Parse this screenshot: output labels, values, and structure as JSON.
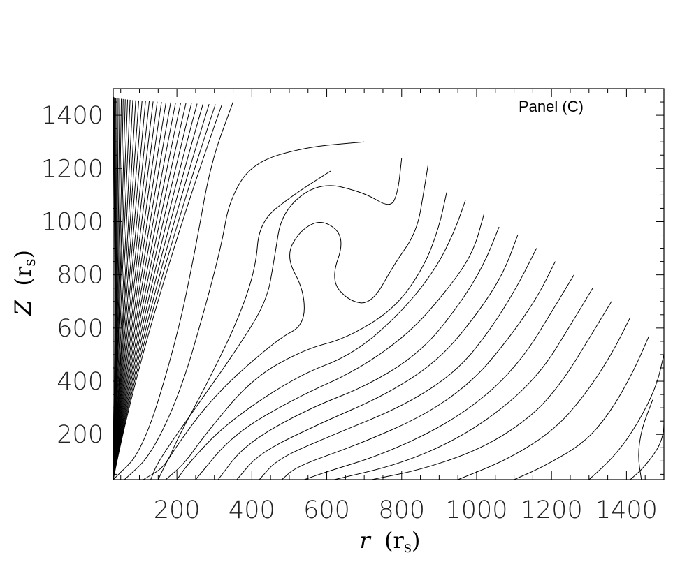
{
  "chart_data": {
    "type": "contour",
    "panel_label": "Panel (C)",
    "xlabel": "r (r_s)",
    "xlabel_main": "r",
    "xlabel_unit": "(r",
    "xlabel_unit_sub": "s",
    "xlabel_close": ")",
    "ylabel_main": "Z",
    "ylabel_unit": "(r",
    "ylabel_unit_sub": "s",
    "ylabel_close": ")",
    "xlim": [
      30,
      1500
    ],
    "ylim": [
      30,
      1500
    ],
    "x_ticks": [
      200,
      400,
      600,
      800,
      1000,
      1200,
      1400
    ],
    "y_ticks": [
      200,
      400,
      600,
      800,
      1000,
      1200,
      1400
    ],
    "x_tick_labels": [
      "200",
      "400",
      "600",
      "800",
      "1000",
      "1200",
      "1400"
    ],
    "y_tick_labels": [
      "200",
      "400",
      "600",
      "800",
      "1000",
      "1200",
      "1400"
    ],
    "grid": false,
    "contours": [
      {
        "points": [
          [
            350,
            1450
          ],
          [
            290,
            1220
          ],
          [
            250,
            900
          ],
          [
            200,
            560
          ],
          [
            110,
            140
          ],
          [
            30,
            30
          ]
        ]
      },
      {
        "points": [
          [
            700,
            1300
          ],
          [
            540,
            1280
          ],
          [
            400,
            1220
          ],
          [
            340,
            1080
          ],
          [
            320,
            920
          ],
          [
            280,
            700
          ],
          [
            210,
            360
          ],
          [
            130,
            120
          ],
          [
            60,
            30
          ]
        ]
      },
      {
        "points": [
          [
            610,
            1190
          ],
          [
            510,
            1100
          ],
          [
            420,
            1000
          ],
          [
            410,
            820
          ],
          [
            360,
            620
          ],
          [
            280,
            390
          ],
          [
            200,
            180
          ],
          [
            170,
            80
          ],
          [
            110,
            30
          ]
        ]
      },
      {
        "points": [
          [
            800,
            1240
          ],
          [
            790,
            1110
          ],
          [
            770,
            1050
          ],
          [
            700,
            1110
          ],
          [
            580,
            1150
          ],
          [
            480,
            1040
          ],
          [
            460,
            860
          ],
          [
            440,
            700
          ],
          [
            360,
            520
          ],
          [
            250,
            300
          ],
          [
            150,
            100
          ],
          [
            130,
            30
          ]
        ]
      },
      {
        "points": [
          [
            870,
            1210
          ],
          [
            860,
            1120
          ],
          [
            840,
            960
          ],
          [
            780,
            840
          ],
          [
            720,
            690
          ],
          [
            660,
            700
          ],
          [
            610,
            780
          ],
          [
            650,
            940
          ],
          [
            590,
            1010
          ],
          [
            530,
            970
          ],
          [
            490,
            870
          ],
          [
            540,
            740
          ],
          [
            540,
            610
          ],
          [
            470,
            560
          ],
          [
            300,
            350
          ],
          [
            180,
            120
          ],
          [
            150,
            30
          ]
        ]
      },
      {
        "points": [
          [
            920,
            1110
          ],
          [
            900,
            980
          ],
          [
            860,
            830
          ],
          [
            780,
            670
          ],
          [
            650,
            560
          ],
          [
            540,
            520
          ],
          [
            400,
            410
          ],
          [
            270,
            190
          ],
          [
            220,
            90
          ],
          [
            170,
            30
          ]
        ]
      },
      {
        "points": [
          [
            970,
            1080
          ],
          [
            940,
            960
          ],
          [
            890,
            820
          ],
          [
            800,
            660
          ],
          [
            670,
            500
          ],
          [
            520,
            420
          ],
          [
            330,
            240
          ],
          [
            230,
            90
          ],
          [
            200,
            30
          ]
        ]
      },
      {
        "points": [
          [
            1020,
            1030
          ],
          [
            990,
            880
          ],
          [
            920,
            740
          ],
          [
            820,
            580
          ],
          [
            680,
            440
          ],
          [
            520,
            340
          ],
          [
            350,
            200
          ],
          [
            250,
            30
          ]
        ]
      },
      {
        "points": [
          [
            1060,
            980
          ],
          [
            1020,
            840
          ],
          [
            960,
            700
          ],
          [
            860,
            520
          ],
          [
            720,
            390
          ],
          [
            540,
            290
          ],
          [
            380,
            160
          ],
          [
            310,
            30
          ]
        ]
      },
      {
        "points": [
          [
            1110,
            950
          ],
          [
            1070,
            800
          ],
          [
            1000,
            650
          ],
          [
            900,
            480
          ],
          [
            760,
            350
          ],
          [
            580,
            240
          ],
          [
            420,
            130
          ],
          [
            360,
            30
          ]
        ]
      },
      {
        "points": [
          [
            1160,
            900
          ],
          [
            1110,
            760
          ],
          [
            1040,
            600
          ],
          [
            950,
            440
          ],
          [
            810,
            310
          ],
          [
            620,
            200
          ],
          [
            470,
            110
          ],
          [
            420,
            30
          ]
        ]
      },
      {
        "points": [
          [
            1210,
            850
          ],
          [
            1160,
            710
          ],
          [
            1080,
            550
          ],
          [
            990,
            400
          ],
          [
            860,
            270
          ],
          [
            680,
            160
          ],
          [
            520,
            80
          ],
          [
            480,
            30
          ]
        ]
      },
      {
        "points": [
          [
            1260,
            800
          ],
          [
            1200,
            660
          ],
          [
            1130,
            500
          ],
          [
            1040,
            360
          ],
          [
            910,
            230
          ],
          [
            740,
            120
          ],
          [
            600,
            60
          ],
          [
            540,
            30
          ]
        ]
      },
      {
        "points": [
          [
            1310,
            750
          ],
          [
            1250,
            610
          ],
          [
            1180,
            450
          ],
          [
            1090,
            320
          ],
          [
            960,
            190
          ],
          [
            800,
            90
          ],
          [
            620,
            30
          ]
        ]
      },
      {
        "points": [
          [
            1360,
            700
          ],
          [
            1300,
            560
          ],
          [
            1230,
            400
          ],
          [
            1150,
            270
          ],
          [
            1020,
            150
          ],
          [
            860,
            70
          ],
          [
            720,
            30
          ]
        ]
      },
      {
        "points": [
          [
            1410,
            640
          ],
          [
            1360,
            500
          ],
          [
            1290,
            350
          ],
          [
            1210,
            220
          ],
          [
            1090,
            110
          ],
          [
            950,
            30
          ]
        ]
      },
      {
        "points": [
          [
            1460,
            570
          ],
          [
            1420,
            440
          ],
          [
            1360,
            290
          ],
          [
            1290,
            170
          ],
          [
            1180,
            80
          ],
          [
            1100,
            30
          ]
        ]
      },
      {
        "points": [
          [
            1510,
            500
          ],
          [
            1480,
            380
          ],
          [
            1430,
            240
          ],
          [
            1370,
            120
          ],
          [
            1300,
            30
          ]
        ]
      },
      {
        "points": [
          [
            1560,
            420
          ],
          [
            1540,
            300
          ],
          [
            1500,
            180
          ],
          [
            1450,
            80
          ],
          [
            1410,
            30
          ]
        ]
      },
      {
        "points": [
          [
            1470,
            330
          ],
          [
            1440,
            220
          ],
          [
            1430,
            120
          ],
          [
            1440,
            30
          ]
        ]
      }
    ]
  }
}
